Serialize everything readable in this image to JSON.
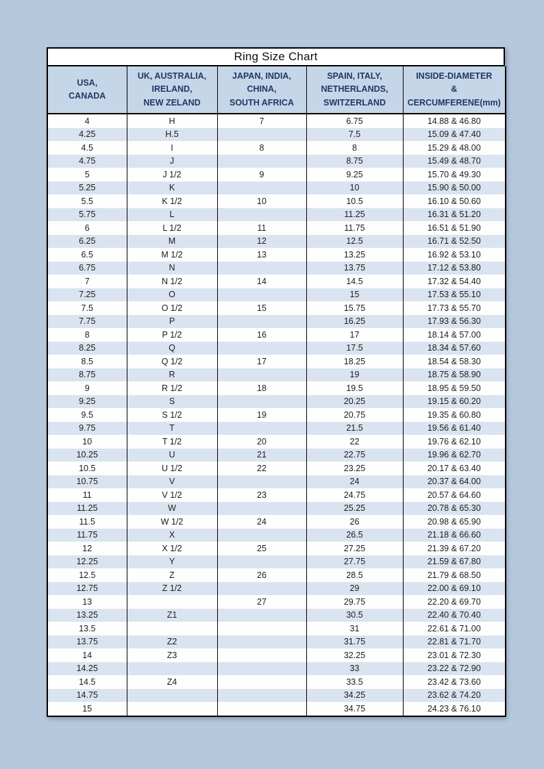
{
  "table": {
    "type": "table",
    "title": "Ring Size Chart",
    "columns": [
      {
        "id": "usa-canada",
        "lines": [
          "USA,",
          "CANADA"
        ]
      },
      {
        "id": "uk-australia-ireland-new-zeland",
        "lines": [
          "UK, AUSTRALIA,",
          "IRELAND,",
          "NEW ZELAND"
        ]
      },
      {
        "id": "japan-india-china-south-africa",
        "lines": [
          "JAPAN, INDIA,",
          "CHINA,",
          "SOUTH AFRICA"
        ]
      },
      {
        "id": "spain-italy-netherlands-switzerland",
        "lines": [
          "SPAIN, ITALY,",
          "NETHERLANDS,",
          "SWITZERLAND"
        ]
      },
      {
        "id": "inside-diameter-circumference",
        "lines": [
          "INSIDE-DIAMETER",
          "&",
          "CERCUMFERENE(mm)"
        ]
      }
    ],
    "rows": [
      [
        "4",
        "H",
        "7",
        "6.75",
        "14.88 & 46.80"
      ],
      [
        "4.25",
        "H.5",
        "",
        "7.5",
        "15.09 & 47.40"
      ],
      [
        "4.5",
        "I",
        "8",
        "8",
        "15.29 & 48.00"
      ],
      [
        "4.75",
        "J",
        "",
        "8.75",
        "15.49 & 48.70"
      ],
      [
        "5",
        "J 1/2",
        "9",
        "9.25",
        "15.70 & 49.30"
      ],
      [
        "5.25",
        "K",
        "",
        "10",
        "15.90 & 50.00"
      ],
      [
        "5.5",
        "K 1/2",
        "10",
        "10.5",
        "16.10 & 50.60"
      ],
      [
        "5.75",
        "L",
        "",
        "11.25",
        "16.31 & 51.20"
      ],
      [
        "6",
        "L 1/2",
        "11",
        "11.75",
        "16.51 & 51.90"
      ],
      [
        "6.25",
        "M",
        "12",
        "12.5",
        "16.71 & 52.50"
      ],
      [
        "6.5",
        "M 1/2",
        "13",
        "13.25",
        "16.92 & 53.10"
      ],
      [
        "6.75",
        "N",
        "",
        "13.75",
        "17.12 & 53.80"
      ],
      [
        "7",
        "N 1/2",
        "14",
        "14.5",
        "17.32 & 54.40"
      ],
      [
        "7.25",
        "O",
        "",
        "15",
        "17.53 & 55.10"
      ],
      [
        "7.5",
        "O 1/2",
        "15",
        "15.75",
        "17.73 & 55.70"
      ],
      [
        "7.75",
        "P",
        "",
        "16.25",
        "17.93 & 56.30"
      ],
      [
        "8",
        "P 1/2",
        "16",
        "17",
        "18.14 & 57.00"
      ],
      [
        "8.25",
        "Q",
        "",
        "17.5",
        "18.34 & 57.60"
      ],
      [
        "8.5",
        "Q 1/2",
        "17",
        "18.25",
        "18.54 & 58.30"
      ],
      [
        "8.75",
        "R",
        "",
        "19",
        "18.75 & 58.90"
      ],
      [
        "9",
        "R 1/2",
        "18",
        "19.5",
        "18.95 & 59.50"
      ],
      [
        "9.25",
        "S",
        "",
        "20.25",
        "19.15 & 60.20"
      ],
      [
        "9.5",
        "S 1/2",
        "19",
        "20.75",
        "19.35 & 60.80"
      ],
      [
        "9.75",
        "T",
        "",
        "21.5",
        "19.56 & 61.40"
      ],
      [
        "10",
        "T 1/2",
        "20",
        "22",
        "19.76 & 62.10"
      ],
      [
        "10.25",
        "U",
        "21",
        "22.75",
        "19.96 & 62.70"
      ],
      [
        "10.5",
        "U 1/2",
        "22",
        "23.25",
        "20.17 & 63.40"
      ],
      [
        "10.75",
        "V",
        "",
        "24",
        "20.37 & 64.00"
      ],
      [
        "11",
        "V 1/2",
        "23",
        "24.75",
        "20.57 & 64.60"
      ],
      [
        "11.25",
        "W",
        "",
        "25.25",
        "20.78 & 65.30"
      ],
      [
        "11.5",
        "W 1/2",
        "24",
        "26",
        "20.98 & 65.90"
      ],
      [
        "11.75",
        "X",
        "",
        "26.5",
        "21.18 & 66.60"
      ],
      [
        "12",
        "X 1/2",
        "25",
        "27.25",
        "21.39 & 67.20"
      ],
      [
        "12.25",
        "Y",
        "",
        "27.75",
        "21.59 & 67.80"
      ],
      [
        "12.5",
        "Z",
        "26",
        "28.5",
        "21.79 & 68.50"
      ],
      [
        "12.75",
        "Z 1/2",
        "",
        "29",
        "22.00 & 69.10"
      ],
      [
        "13",
        "",
        "27",
        "29.75",
        "22.20 & 69.70"
      ],
      [
        "13.25",
        "Z1",
        "",
        "30.5",
        "22.40 & 70.40"
      ],
      [
        "13.5",
        "",
        "",
        "31",
        "22.61 & 71.00"
      ],
      [
        "13.75",
        "Z2",
        "",
        "31.75",
        "22.81 & 71.70"
      ],
      [
        "14",
        "Z3",
        "",
        "32.25",
        "23.01 & 72.30"
      ],
      [
        "14.25",
        "",
        "",
        "33",
        "23.22 & 72.90"
      ],
      [
        "14.5",
        "Z4",
        "",
        "33.5",
        "23.42 & 73.60"
      ],
      [
        "14.75",
        "",
        "",
        "34.25",
        "23.62 & 74.20"
      ],
      [
        "15",
        "",
        "",
        "34.75",
        "24.23 & 76.10"
      ]
    ],
    "colors": {
      "page_background": "#b6c8dc",
      "header_background": "#c5d6e8",
      "header_text": "#1f3864",
      "row_alternate": "#dae4f0",
      "row_white": "#fefefe",
      "border": "#000000",
      "body_text": "#1c1c1c"
    }
  }
}
